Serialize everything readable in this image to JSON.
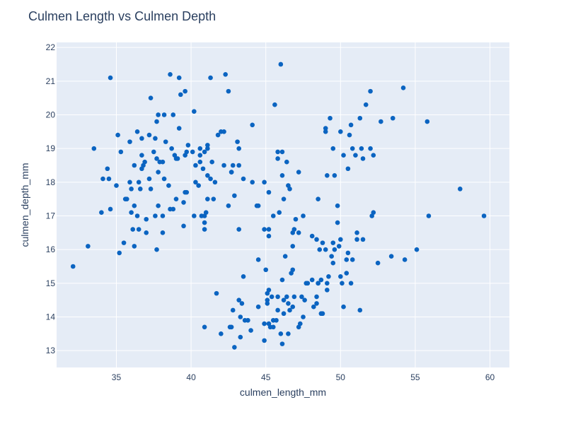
{
  "chart_data": {
    "type": "scatter",
    "title": "Culmen Length vs Culmen Depth",
    "xlabel": "culmen_length_mm",
    "ylabel": "culmen_depth_mm",
    "xlim": [
      31,
      61.3
    ],
    "ylim": [
      12.5,
      22.15
    ],
    "x_ticks": [
      35,
      40,
      45,
      50,
      55,
      60
    ],
    "y_ticks": [
      13,
      14,
      15,
      16,
      17,
      18,
      19,
      20,
      21,
      22
    ],
    "grid": true,
    "marker_color": "#0b64c1",
    "plot_bg": "#e5ecf6",
    "points": [
      [
        32.1,
        15.5
      ],
      [
        33.1,
        16.1
      ],
      [
        33.5,
        19.0
      ],
      [
        34.0,
        17.1
      ],
      [
        34.1,
        18.1
      ],
      [
        34.4,
        18.4
      ],
      [
        34.5,
        18.1
      ],
      [
        34.6,
        17.2
      ],
      [
        34.6,
        21.1
      ],
      [
        35.0,
        17.9
      ],
      [
        35.1,
        19.4
      ],
      [
        35.2,
        15.9
      ],
      [
        35.3,
        18.9
      ],
      [
        35.5,
        16.2
      ],
      [
        35.6,
        17.5
      ],
      [
        35.7,
        17.5
      ],
      [
        35.9,
        18.0
      ],
      [
        35.9,
        19.2
      ],
      [
        36.0,
        17.8
      ],
      [
        36.0,
        17.1
      ],
      [
        36.1,
        16.6
      ],
      [
        36.2,
        17.3
      ],
      [
        36.2,
        18.5
      ],
      [
        36.2,
        16.1
      ],
      [
        36.4,
        17.0
      ],
      [
        36.4,
        19.5
      ],
      [
        36.5,
        18.0
      ],
      [
        36.5,
        16.6
      ],
      [
        36.6,
        17.8
      ],
      [
        36.7,
        18.4
      ],
      [
        36.7,
        19.3
      ],
      [
        36.7,
        18.8
      ],
      [
        36.8,
        18.5
      ],
      [
        36.9,
        18.6
      ],
      [
        37.0,
        16.9
      ],
      [
        37.0,
        16.5
      ],
      [
        37.2,
        18.1
      ],
      [
        37.2,
        19.4
      ],
      [
        37.3,
        17.8
      ],
      [
        37.3,
        20.5
      ],
      [
        37.5,
        18.9
      ],
      [
        37.6,
        17.0
      ],
      [
        37.6,
        19.3
      ],
      [
        37.7,
        18.7
      ],
      [
        37.7,
        16.0
      ],
      [
        37.7,
        19.8
      ],
      [
        37.8,
        17.3
      ],
      [
        37.8,
        18.3
      ],
      [
        37.8,
        20.0
      ],
      [
        37.9,
        18.6
      ],
      [
        38.1,
        17.0
      ],
      [
        38.1,
        18.6
      ],
      [
        38.1,
        16.5
      ],
      [
        38.2,
        18.1
      ],
      [
        38.2,
        20.0
      ],
      [
        38.3,
        19.2
      ],
      [
        38.5,
        17.9
      ],
      [
        38.6,
        21.2
      ],
      [
        38.6,
        17.2
      ],
      [
        38.7,
        19.0
      ],
      [
        38.8,
        17.2
      ],
      [
        38.8,
        20.0
      ],
      [
        38.9,
        18.8
      ],
      [
        39.0,
        17.5
      ],
      [
        39.0,
        18.7
      ],
      [
        39.1,
        18.7
      ],
      [
        39.2,
        19.6
      ],
      [
        39.2,
        21.1
      ],
      [
        39.3,
        20.6
      ],
      [
        39.5,
        17.4
      ],
      [
        39.5,
        16.7
      ],
      [
        39.6,
        17.7
      ],
      [
        39.6,
        18.8
      ],
      [
        39.6,
        20.7
      ],
      [
        39.7,
        17.7
      ],
      [
        39.7,
        18.9
      ],
      [
        39.8,
        19.1
      ],
      [
        40.1,
        18.9
      ],
      [
        40.2,
        17.0
      ],
      [
        40.2,
        20.1
      ],
      [
        40.3,
        18.0
      ],
      [
        40.3,
        18.5
      ],
      [
        40.5,
        17.9
      ],
      [
        40.6,
        18.6
      ],
      [
        40.6,
        18.8
      ],
      [
        40.6,
        19.0
      ],
      [
        40.7,
        17.0
      ],
      [
        40.8,
        18.4
      ],
      [
        40.9,
        16.6
      ],
      [
        40.9,
        18.9
      ],
      [
        40.9,
        17.0
      ],
      [
        40.9,
        16.8
      ],
      [
        41.0,
        17.1
      ],
      [
        41.1,
        17.5
      ],
      [
        41.1,
        18.2
      ],
      [
        41.1,
        19.0
      ],
      [
        41.1,
        19.1
      ],
      [
        41.3,
        18.1
      ],
      [
        41.3,
        21.1
      ],
      [
        41.4,
        18.6
      ],
      [
        41.5,
        17.5
      ],
      [
        41.6,
        18.0
      ],
      [
        41.8,
        19.4
      ],
      [
        42.0,
        19.5
      ],
      [
        42.2,
        18.5
      ],
      [
        42.2,
        19.5
      ],
      [
        42.3,
        21.2
      ],
      [
        42.5,
        17.3
      ],
      [
        42.5,
        20.7
      ],
      [
        42.7,
        18.3
      ],
      [
        42.8,
        18.5
      ],
      [
        42.9,
        17.6
      ],
      [
        43.1,
        19.2
      ],
      [
        43.2,
        18.5
      ],
      [
        43.2,
        19.0
      ],
      [
        43.3,
        14.0
      ],
      [
        43.5,
        18.1
      ],
      [
        44.1,
        19.7
      ],
      [
        44.1,
        18.0
      ],
      [
        44.5,
        17.3
      ],
      [
        44.9,
        18.0
      ],
      [
        45.5,
        17.0
      ],
      [
        45.6,
        20.3
      ],
      [
        45.8,
        18.9
      ],
      [
        46.0,
        21.5
      ],
      [
        46.1,
        18.9
      ],
      [
        46.4,
        18.6
      ],
      [
        46.5,
        17.9
      ],
      [
        46.6,
        17.8
      ],
      [
        46.8,
        16.5
      ],
      [
        47.0,
        16.9
      ],
      [
        47.2,
        16.5
      ],
      [
        47.5,
        17.0
      ],
      [
        48.1,
        16.4
      ],
      [
        48.5,
        17.5
      ],
      [
        49.0,
        19.5
      ],
      [
        49.1,
        18.2
      ],
      [
        49.3,
        19.9
      ],
      [
        49.5,
        19.0
      ],
      [
        49.6,
        18.2
      ],
      [
        49.8,
        17.3
      ],
      [
        50.0,
        19.5
      ],
      [
        50.2,
        18.8
      ],
      [
        50.5,
        18.4
      ],
      [
        50.7,
        19.7
      ],
      [
        50.8,
        19.0
      ],
      [
        51.0,
        18.8
      ],
      [
        51.3,
        19.9
      ],
      [
        51.4,
        19.0
      ],
      [
        51.5,
        18.7
      ],
      [
        51.7,
        20.3
      ],
      [
        52.0,
        20.7
      ],
      [
        52.0,
        19.0
      ],
      [
        52.2,
        18.8
      ],
      [
        52.7,
        19.8
      ],
      [
        53.5,
        19.9
      ],
      [
        54.2,
        20.8
      ],
      [
        55.8,
        19.8
      ],
      [
        49.0,
        19.6
      ],
      [
        46.2,
        17.5
      ],
      [
        46.9,
        16.6
      ],
      [
        45.2,
        16.4
      ],
      [
        45.2,
        16.6
      ],
      [
        48.4,
        14.6
      ],
      [
        48.5,
        15.0
      ],
      [
        48.7,
        14.1
      ],
      [
        48.8,
        16.2
      ],
      [
        49.1,
        14.8
      ],
      [
        49.1,
        15.0
      ],
      [
        49.2,
        15.2
      ],
      [
        49.4,
        15.8
      ],
      [
        49.5,
        16.2
      ],
      [
        49.6,
        16.0
      ],
      [
        49.8,
        16.8
      ],
      [
        50.0,
        15.2
      ],
      [
        50.1,
        15.0
      ],
      [
        50.2,
        14.3
      ],
      [
        50.4,
        15.3
      ],
      [
        50.5,
        15.9
      ],
      [
        50.7,
        15.0
      ],
      [
        50.8,
        15.7
      ],
      [
        51.1,
        16.5
      ],
      [
        51.1,
        16.3
      ],
      [
        51.3,
        14.2
      ],
      [
        51.5,
        16.3
      ],
      [
        52.1,
        17.0
      ],
      [
        52.2,
        17.1
      ],
      [
        52.5,
        15.6
      ],
      [
        53.4,
        15.8
      ],
      [
        54.3,
        15.7
      ],
      [
        55.1,
        16.0
      ],
      [
        55.9,
        17.0
      ],
      [
        58.0,
        17.8
      ],
      [
        59.6,
        17.0
      ],
      [
        40.9,
        13.7
      ],
      [
        42.0,
        13.5
      ],
      [
        42.6,
        13.7
      ],
      [
        42.7,
        13.7
      ],
      [
        42.8,
        14.2
      ],
      [
        42.9,
        13.1
      ],
      [
        43.2,
        14.5
      ],
      [
        43.3,
        13.4
      ],
      [
        43.4,
        14.4
      ],
      [
        43.5,
        15.2
      ],
      [
        43.6,
        13.9
      ],
      [
        43.8,
        13.9
      ],
      [
        44.0,
        13.6
      ],
      [
        44.4,
        17.3
      ],
      [
        44.5,
        14.3
      ],
      [
        44.5,
        15.7
      ],
      [
        44.9,
        13.3
      ],
      [
        44.9,
        13.8
      ],
      [
        45.0,
        15.4
      ],
      [
        45.1,
        14.5
      ],
      [
        45.1,
        14.4
      ],
      [
        45.2,
        13.8
      ],
      [
        45.2,
        14.8
      ],
      [
        45.3,
        13.7
      ],
      [
        45.4,
        14.6
      ],
      [
        45.5,
        13.7
      ],
      [
        45.5,
        13.9
      ],
      [
        45.7,
        13.9
      ],
      [
        45.8,
        14.2
      ],
      [
        45.8,
        14.6
      ],
      [
        46.1,
        13.2
      ],
      [
        46.1,
        15.1
      ],
      [
        46.2,
        14.5
      ],
      [
        46.2,
        14.1
      ],
      [
        46.3,
        15.8
      ],
      [
        46.4,
        14.6
      ],
      [
        46.5,
        13.5
      ],
      [
        46.5,
        14.4
      ],
      [
        46.6,
        14.2
      ],
      [
        46.8,
        14.3
      ],
      [
        46.8,
        15.4
      ],
      [
        46.9,
        14.6
      ],
      [
        47.2,
        13.7
      ],
      [
        47.3,
        13.8
      ],
      [
        47.4,
        14.6
      ],
      [
        47.5,
        14.0
      ],
      [
        47.6,
        14.5
      ],
      [
        47.7,
        15.0
      ],
      [
        47.8,
        15.0
      ],
      [
        48.1,
        15.1
      ],
      [
        48.2,
        14.3
      ],
      [
        48.4,
        14.4
      ],
      [
        48.4,
        16.3
      ],
      [
        48.5,
        15.0
      ],
      [
        48.6,
        16.0
      ],
      [
        48.7,
        15.1
      ],
      [
        48.8,
        14.1
      ],
      [
        49.0,
        16.0
      ],
      [
        49.5,
        15.6
      ],
      [
        49.9,
        16.1
      ],
      [
        50.0,
        16.3
      ],
      [
        50.4,
        15.7
      ],
      [
        45.1,
        14.7
      ],
      [
        46.0,
        13.5
      ],
      [
        46.8,
        16.1
      ],
      [
        45.9,
        17.1
      ],
      [
        46.7,
        15.3
      ],
      [
        43.2,
        16.6
      ],
      [
        42.7,
        18.3
      ],
      [
        41.7,
        14.7
      ],
      [
        46.1,
        18.2
      ],
      [
        47.2,
        18.3
      ],
      [
        45.8,
        18.7
      ],
      [
        45.2,
        17.7
      ],
      [
        44.9,
        16.6
      ],
      [
        50.6,
        19.4
      ]
    ]
  }
}
